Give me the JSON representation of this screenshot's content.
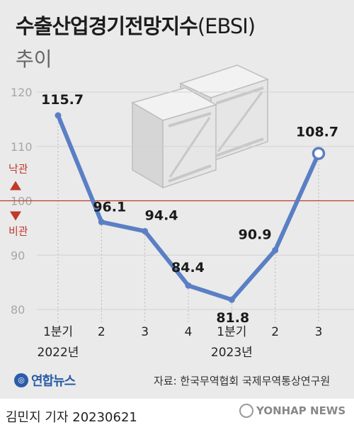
{
  "header": {
    "title_main": "수출산업경기전망지수",
    "title_paren": "(EBSI)",
    "subtitle": "추이"
  },
  "chart_data": {
    "type": "line",
    "categories": [
      "1분기",
      "2",
      "3",
      "4",
      "1분기",
      "2",
      "3"
    ],
    "year_labels": [
      "2022년",
      "2023년"
    ],
    "values": [
      115.7,
      96.1,
      94.4,
      84.4,
      81.8,
      90.9,
      108.7
    ],
    "value_labels": [
      "115.7",
      "96.1",
      "94.4",
      "84.4",
      "81.8",
      "90.9",
      "108.7"
    ],
    "yticks": [
      80,
      90,
      100,
      110,
      120
    ],
    "ylim": [
      78,
      123
    ],
    "reference": {
      "value": 100,
      "upper_label": "낙관",
      "lower_label": "비관",
      "color": "#c0392b"
    },
    "line_color": "#5b7fc4",
    "grid": false
  },
  "footer": {
    "logo_text": "연합뉴스",
    "source": "자료: 한국무역협회 국제무역통상연구원",
    "credit": "김민지 기자  20230621",
    "watermark": "YONHAP NEWS"
  }
}
